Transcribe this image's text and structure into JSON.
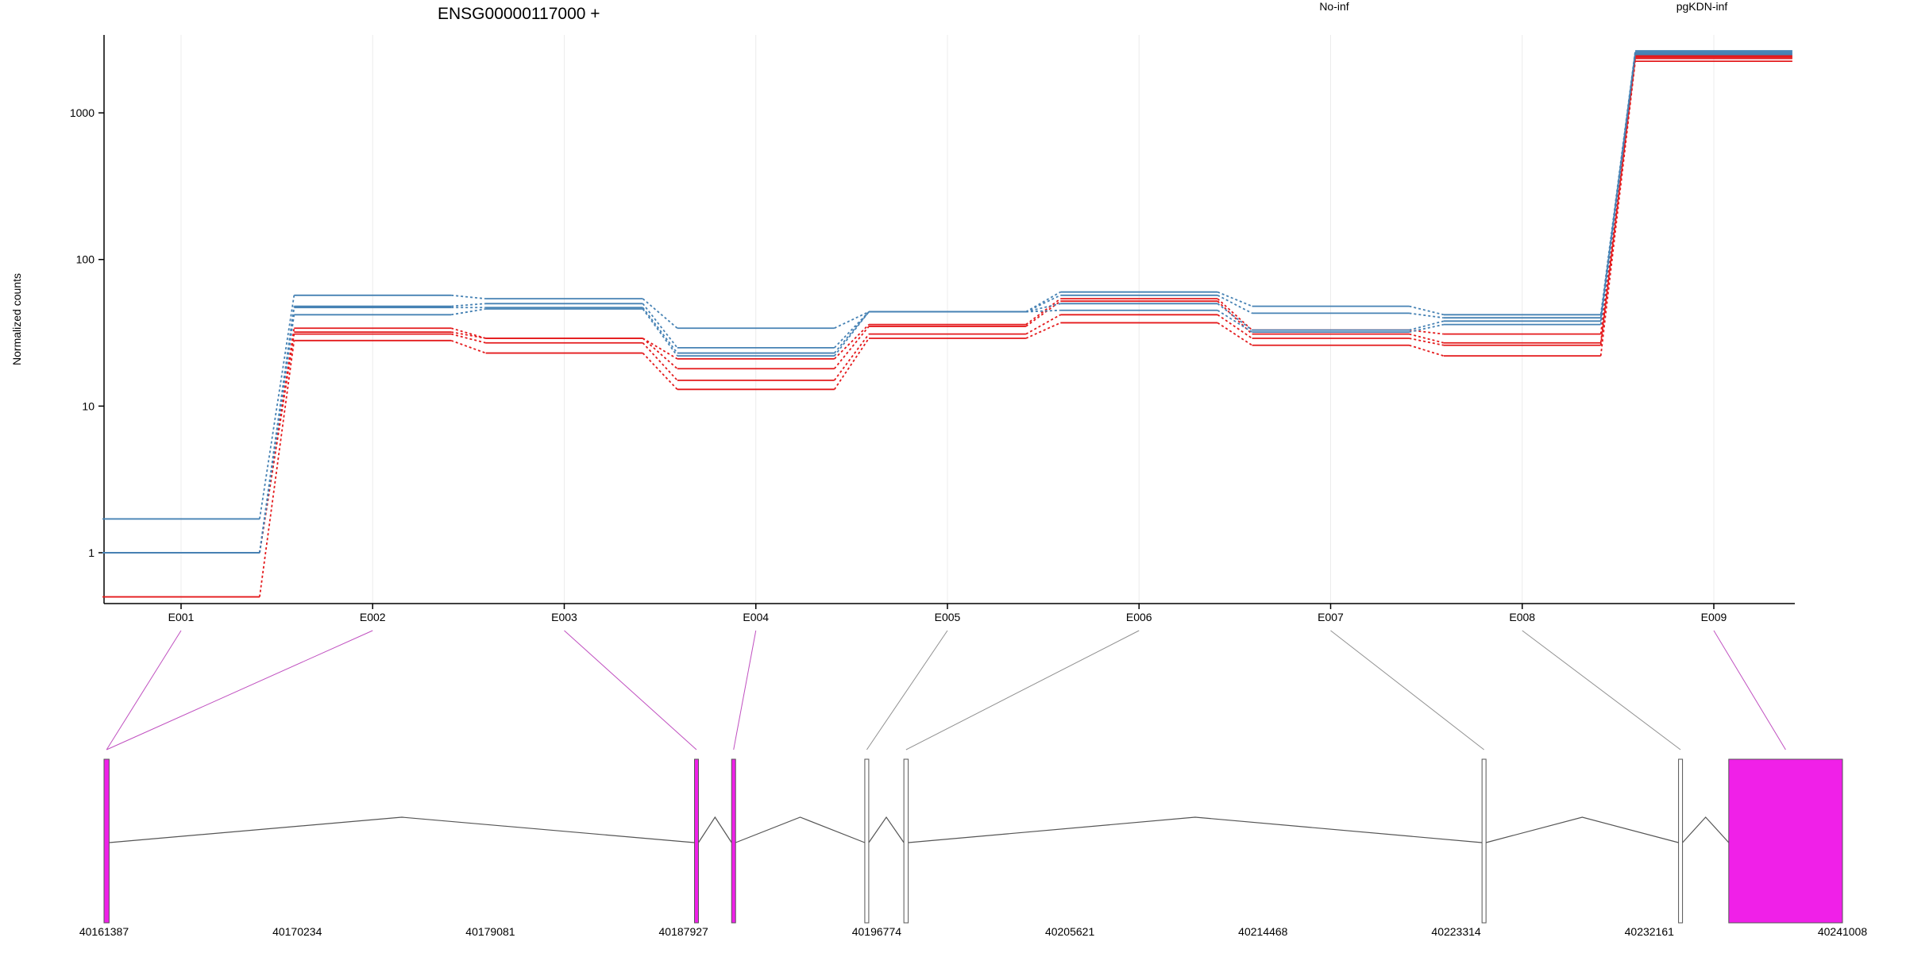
{
  "chart_data": {
    "type": "line",
    "title": "ENSG00000117000 +",
    "ylabel": "Normalized counts",
    "xlabel": "",
    "yscale": "log",
    "ylim": [
      0.45,
      3400
    ],
    "yticks": [
      1,
      10,
      100,
      1000
    ],
    "grid": "vertical",
    "legend_position": "top",
    "categories": [
      "E001",
      "E002",
      "E003",
      "E004",
      "E005",
      "E006",
      "E007",
      "E008",
      "E009"
    ],
    "series": [
      {
        "name": "No-inf",
        "color": "#e41a1c",
        "linestyle": "solid",
        "values": [
          1.0,
          32,
          29,
          21,
          36,
          54,
          33,
          31,
          2450
        ]
      },
      {
        "name": "No-inf",
        "color": "#e41a1c",
        "linestyle": "solid",
        "values": [
          1.0,
          34,
          29,
          18,
          35,
          52,
          31,
          27,
          2400
        ]
      },
      {
        "name": "No-inf",
        "color": "#e41a1c",
        "linestyle": "solid",
        "values": [
          1.0,
          31,
          27,
          15,
          31,
          42,
          29,
          26,
          2350
        ]
      },
      {
        "name": "No-inf",
        "color": "#e41a1c",
        "linestyle": "solid",
        "values": [
          0.5,
          28,
          23,
          13,
          29,
          37,
          26,
          22,
          2250
        ]
      },
      {
        "name": "pgKDN-inf",
        "color": "#4682b4",
        "linestyle": "solid",
        "values": [
          1.7,
          57,
          54,
          34,
          44,
          60,
          48,
          42,
          2650
        ]
      },
      {
        "name": "pgKDN-inf",
        "color": "#4682b4",
        "linestyle": "solid",
        "values": [
          1.0,
          48,
          50,
          25,
          44,
          57,
          43,
          40,
          2600
        ]
      },
      {
        "name": "pgKDN-inf",
        "color": "#4682b4",
        "linestyle": "solid",
        "values": [
          1.0,
          47,
          47,
          23,
          44,
          50,
          33,
          38,
          2550
        ]
      },
      {
        "name": "pgKDN-inf",
        "color": "#4682b4",
        "linestyle": "solid",
        "values": [
          1.0,
          42,
          46,
          22,
          44,
          45,
          32,
          36,
          2500
        ]
      }
    ],
    "legend": [
      {
        "label": "No-inf",
        "color": "#e41a1c"
      },
      {
        "label": "pgKDN-inf",
        "color": "#4682b4"
      }
    ],
    "gene_model": {
      "genomic_ticks": [
        "40161387",
        "40170234",
        "40179081",
        "40187927",
        "40196774",
        "40205621",
        "40214468",
        "40223314",
        "40232161",
        "40241008"
      ],
      "genomic_range": [
        40161387,
        40241008
      ],
      "exons": [
        {
          "id": "E001",
          "start": 40161387,
          "end": 40161620,
          "highlight": true
        },
        {
          "id": "E002",
          "start": 40161387,
          "end": 40161620,
          "highlight": true
        },
        {
          "id": "E003",
          "start": 40188430,
          "end": 40188590,
          "highlight": true
        },
        {
          "id": "E004",
          "start": 40190130,
          "end": 40190220,
          "highlight": true
        },
        {
          "id": "E005",
          "start": 40196230,
          "end": 40196400,
          "highlight": false
        },
        {
          "id": "E006",
          "start": 40198020,
          "end": 40198220,
          "highlight": false
        },
        {
          "id": "E007",
          "start": 40224500,
          "end": 40224680,
          "highlight": false
        },
        {
          "id": "E008",
          "start": 40233500,
          "end": 40233680,
          "highlight": false
        },
        {
          "id": "E009",
          "start": 40235800,
          "end": 40241008,
          "highlight": true
        }
      ],
      "highlight_color": "#f020e8",
      "normal_color": "#ffffff"
    }
  }
}
